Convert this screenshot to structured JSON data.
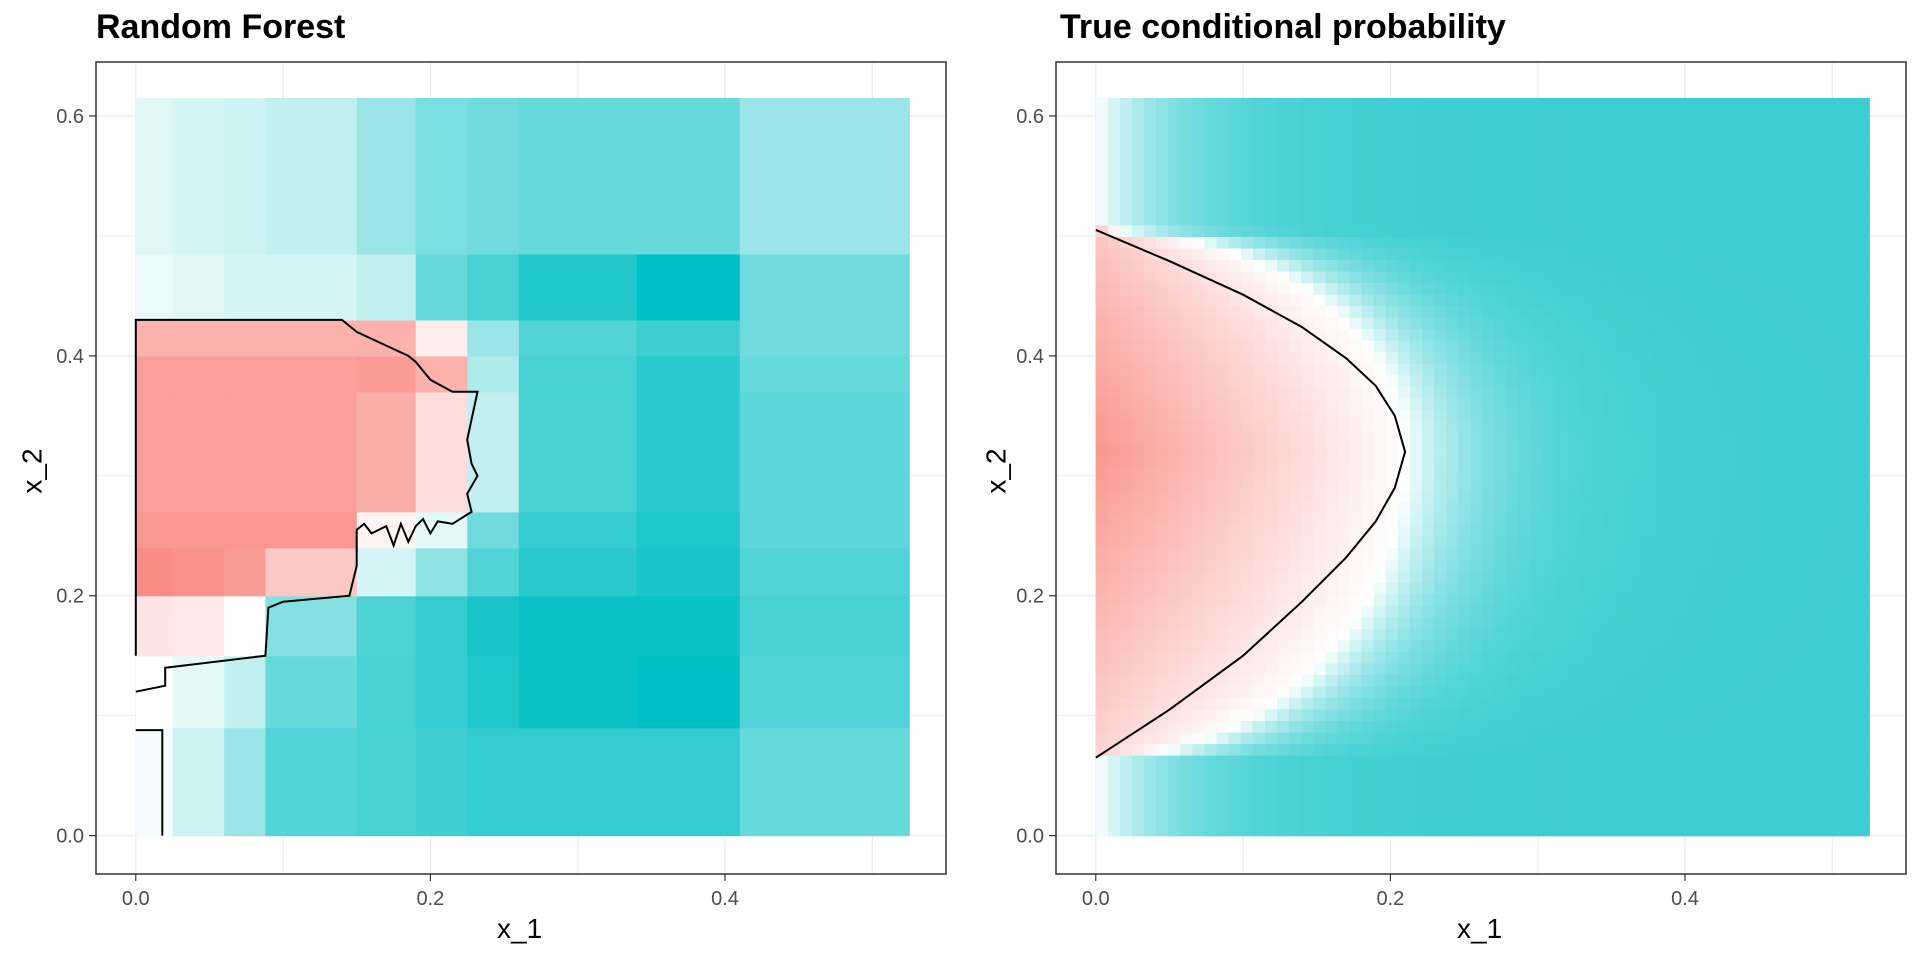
{
  "colors": {
    "low": "#F8766D",
    "mid": "#FFFFFF",
    "high": "#00BFC4",
    "grid": "#EBEBEB",
    "frame": "#333333",
    "tick_text": "#4D4D4D"
  },
  "chart_data": [
    {
      "type": "heatmap",
      "title": "Random Forest",
      "xlabel": "x_1",
      "ylabel": "x_2",
      "xlim": [
        -0.027,
        0.55
      ],
      "ylim": [
        -0.032,
        0.645
      ],
      "x_ticks": [
        0.0,
        0.2,
        0.4
      ],
      "x_tick_labels": [
        "0.0",
        "0.2",
        "0.4"
      ],
      "y_ticks": [
        0.0,
        0.2,
        0.4,
        0.6
      ],
      "y_tick_labels": [
        "0.0",
        "0.2",
        "0.4",
        "0.6"
      ],
      "grid": true,
      "x_breaks": [
        0.0,
        0.025,
        0.06,
        0.088,
        0.15,
        0.19,
        0.225,
        0.26,
        0.34,
        0.41,
        0.525
      ],
      "y_breaks": [
        0.0,
        0.09,
        0.15,
        0.2,
        0.24,
        0.27,
        0.37,
        0.4,
        0.43,
        0.485,
        0.615
      ],
      "probability_grid": [
        [
          0.52,
          0.6,
          0.7,
          0.84,
          0.86,
          0.88,
          0.9,
          0.9,
          0.9,
          0.8
        ],
        [
          0.5,
          0.55,
          0.62,
          0.8,
          0.86,
          0.9,
          0.94,
          0.98,
          1.0,
          0.84
        ],
        [
          0.4,
          0.42,
          0.5,
          0.74,
          0.85,
          0.9,
          0.95,
          0.98,
          0.98,
          0.86
        ],
        [
          0.08,
          0.1,
          0.14,
          0.3,
          0.58,
          0.72,
          0.84,
          0.92,
          0.95,
          0.84
        ],
        [
          0.12,
          0.12,
          0.12,
          0.12,
          0.46,
          0.55,
          0.78,
          0.9,
          0.94,
          0.82
        ],
        [
          0.15,
          0.15,
          0.15,
          0.15,
          0.2,
          0.38,
          0.62,
          0.86,
          0.92,
          0.82
        ],
        [
          0.15,
          0.15,
          0.15,
          0.15,
          0.14,
          0.22,
          0.66,
          0.86,
          0.92,
          0.8
        ],
        [
          0.22,
          0.22,
          0.22,
          0.22,
          0.22,
          0.44,
          0.7,
          0.84,
          0.88,
          0.78
        ],
        [
          0.54,
          0.56,
          0.58,
          0.58,
          0.62,
          0.8,
          0.86,
          0.94,
          1.0,
          0.78
        ],
        [
          0.56,
          0.58,
          0.6,
          0.62,
          0.7,
          0.76,
          0.78,
          0.8,
          0.8,
          0.7
        ]
      ],
      "decision_boundaries": [
        [
          [
            0.0,
            0.15
          ],
          [
            0.0,
            0.43
          ],
          [
            0.06,
            0.43
          ],
          [
            0.14,
            0.43
          ],
          [
            0.15,
            0.42
          ],
          [
            0.185,
            0.4
          ],
          [
            0.19,
            0.395
          ],
          [
            0.2,
            0.38
          ],
          [
            0.215,
            0.37
          ],
          [
            0.232,
            0.37
          ],
          [
            0.225,
            0.33
          ],
          [
            0.228,
            0.31
          ],
          [
            0.232,
            0.3
          ],
          [
            0.225,
            0.285
          ],
          [
            0.228,
            0.27
          ],
          [
            0.215,
            0.26
          ],
          [
            0.205,
            0.262
          ],
          [
            0.2,
            0.252
          ],
          [
            0.195,
            0.264
          ],
          [
            0.19,
            0.258
          ],
          [
            0.185,
            0.245
          ],
          [
            0.18,
            0.26
          ],
          [
            0.175,
            0.242
          ],
          [
            0.17,
            0.258
          ],
          [
            0.16,
            0.252
          ],
          [
            0.155,
            0.26
          ],
          [
            0.15,
            0.255
          ],
          [
            0.15,
            0.225
          ],
          [
            0.145,
            0.2
          ],
          [
            0.1,
            0.195
          ],
          [
            0.09,
            0.19
          ],
          [
            0.088,
            0.15
          ],
          [
            0.02,
            0.14
          ],
          [
            0.02,
            0.125
          ],
          [
            0.0,
            0.12
          ]
        ],
        [
          [
            0.0,
            0.088
          ],
          [
            0.018,
            0.088
          ],
          [
            0.018,
            0.0
          ]
        ]
      ]
    },
    {
      "type": "heatmap",
      "title": "True conditional probability",
      "xlabel": "x_1",
      "ylabel": "x_2",
      "xlim": [
        -0.027,
        0.55
      ],
      "ylim": [
        -0.032,
        0.645
      ],
      "x_ticks": [
        0.0,
        0.2,
        0.4
      ],
      "x_tick_labels": [
        "0.0",
        "0.2",
        "0.4"
      ],
      "y_ticks": [
        0.0,
        0.2,
        0.4,
        0.6
      ],
      "y_tick_labels": [
        "0.0",
        "0.2",
        "0.4",
        "0.6"
      ],
      "grid": true,
      "x_range": [
        0.0,
        0.525
      ],
      "y_range": [
        0.0,
        0.615
      ],
      "boundary_vertex": [
        0.21,
        0.32
      ],
      "boundary_y_at_x0": [
        0.065,
        0.505
      ],
      "decision_boundaries": [
        [
          [
            0.0,
            0.505
          ],
          [
            0.05,
            0.479
          ],
          [
            0.1,
            0.451
          ],
          [
            0.14,
            0.424
          ],
          [
            0.17,
            0.398
          ],
          [
            0.19,
            0.375
          ],
          [
            0.203,
            0.35
          ],
          [
            0.21,
            0.32
          ],
          [
            0.203,
            0.29
          ],
          [
            0.19,
            0.262
          ],
          [
            0.17,
            0.232
          ],
          [
            0.14,
            0.195
          ],
          [
            0.1,
            0.15
          ],
          [
            0.05,
            0.105
          ],
          [
            0.0,
            0.065
          ]
        ]
      ]
    }
  ]
}
